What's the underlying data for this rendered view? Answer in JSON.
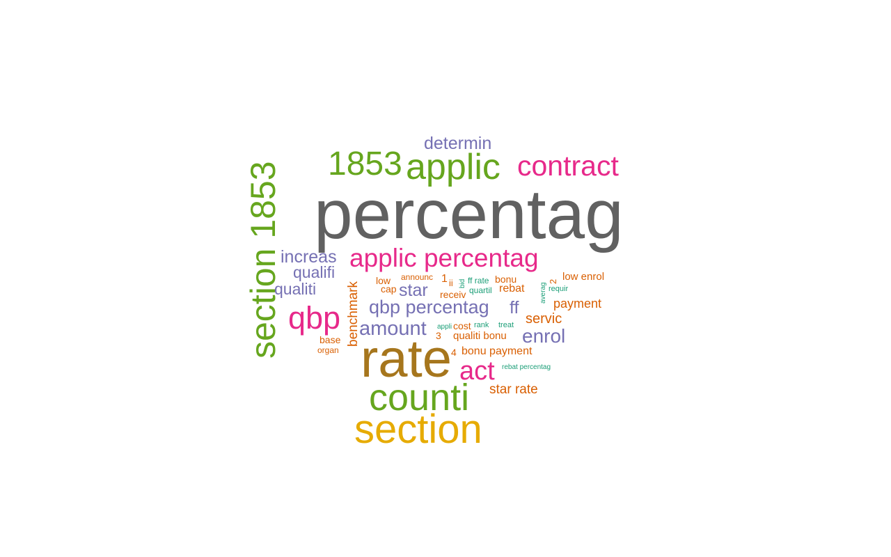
{
  "colors": {
    "gray": "#616161",
    "olive": "#A6761D",
    "gold": "#E6AB02",
    "green": "#66A61E",
    "magenta": "#E7298A",
    "purple": "#7570B3",
    "orange": "#D95F02",
    "teal": "#1B9E77"
  },
  "words": [
    {
      "text": "percentag",
      "color": "gray",
      "orientation": "horizontal"
    },
    {
      "text": "rate",
      "color": "olive",
      "orientation": "horizontal"
    },
    {
      "text": "section",
      "color": "gold",
      "orientation": "horizontal"
    },
    {
      "text": "counti",
      "color": "green",
      "orientation": "horizontal"
    },
    {
      "text": "section 1853",
      "color": "green",
      "orientation": "vertical"
    },
    {
      "text": "applic",
      "color": "green",
      "orientation": "horizontal"
    },
    {
      "text": "1853",
      "color": "green",
      "orientation": "horizontal"
    },
    {
      "text": "contract",
      "color": "magenta",
      "orientation": "horizontal"
    },
    {
      "text": "applic percentag",
      "color": "magenta",
      "orientation": "horizontal"
    },
    {
      "text": "qbp",
      "color": "magenta",
      "orientation": "horizontal"
    },
    {
      "text": "act",
      "color": "magenta",
      "orientation": "horizontal"
    },
    {
      "text": "determin",
      "color": "purple",
      "orientation": "horizontal"
    },
    {
      "text": "increas",
      "color": "purple",
      "orientation": "horizontal"
    },
    {
      "text": "qualifi",
      "color": "purple",
      "orientation": "horizontal"
    },
    {
      "text": "qualiti",
      "color": "purple",
      "orientation": "horizontal"
    },
    {
      "text": "qbp percentag",
      "color": "purple",
      "orientation": "horizontal"
    },
    {
      "text": "amount",
      "color": "purple",
      "orientation": "horizontal"
    },
    {
      "text": "star",
      "color": "purple",
      "orientation": "horizontal"
    },
    {
      "text": "ff",
      "color": "purple",
      "orientation": "horizontal"
    },
    {
      "text": "enrol",
      "color": "purple",
      "orientation": "horizontal"
    },
    {
      "text": "benchmark",
      "color": "orange",
      "orientation": "vertical"
    },
    {
      "text": "low",
      "color": "orange",
      "orientation": "horizontal"
    },
    {
      "text": "announc",
      "color": "orange",
      "orientation": "horizontal"
    },
    {
      "text": "cap",
      "color": "orange",
      "orientation": "horizontal"
    },
    {
      "text": "1",
      "color": "orange",
      "orientation": "horizontal"
    },
    {
      "text": "ii",
      "color": "orange",
      "orientation": "horizontal"
    },
    {
      "text": "receiv",
      "color": "orange",
      "orientation": "horizontal"
    },
    {
      "text": "bonu",
      "color": "orange",
      "orientation": "horizontal"
    },
    {
      "text": "rebat",
      "color": "orange",
      "orientation": "horizontal"
    },
    {
      "text": "2",
      "color": "orange",
      "orientation": "vertical"
    },
    {
      "text": "low enrol",
      "color": "orange",
      "orientation": "horizontal"
    },
    {
      "text": "payment",
      "color": "orange",
      "orientation": "horizontal"
    },
    {
      "text": "servic",
      "color": "orange",
      "orientation": "horizontal"
    },
    {
      "text": "base",
      "color": "orange",
      "orientation": "horizontal"
    },
    {
      "text": "organ",
      "color": "orange",
      "orientation": "horizontal"
    },
    {
      "text": "3",
      "color": "orange",
      "orientation": "horizontal"
    },
    {
      "text": "4",
      "color": "orange",
      "orientation": "horizontal"
    },
    {
      "text": "cost",
      "color": "orange",
      "orientation": "horizontal"
    },
    {
      "text": "qualiti bonu",
      "color": "orange",
      "orientation": "horizontal"
    },
    {
      "text": "bonu payment",
      "color": "orange",
      "orientation": "horizontal"
    },
    {
      "text": "star rate",
      "color": "orange",
      "orientation": "horizontal"
    },
    {
      "text": "ff rate",
      "color": "teal",
      "orientation": "horizontal"
    },
    {
      "text": "bid",
      "color": "teal",
      "orientation": "vertical"
    },
    {
      "text": "quartil",
      "color": "teal",
      "orientation": "horizontal"
    },
    {
      "text": "averag",
      "color": "teal",
      "orientation": "vertical"
    },
    {
      "text": "requir",
      "color": "teal",
      "orientation": "horizontal"
    },
    {
      "text": "appli",
      "color": "teal",
      "orientation": "horizontal"
    },
    {
      "text": "rank",
      "color": "teal",
      "orientation": "horizontal"
    },
    {
      "text": "treat",
      "color": "teal",
      "orientation": "horizontal"
    },
    {
      "text": "rebat percentag",
      "color": "teal",
      "orientation": "horizontal"
    }
  ]
}
